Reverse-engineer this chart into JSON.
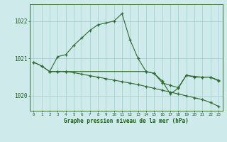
{
  "line1_x": [
    0,
    1,
    2,
    3,
    4,
    5,
    6,
    7,
    8,
    9,
    10,
    11,
    12,
    13,
    14,
    15,
    16,
    17,
    18,
    19,
    20,
    21,
    22,
    23
  ],
  "line1_y": [
    1020.9,
    1020.8,
    1020.65,
    1021.05,
    1021.1,
    1021.35,
    1021.55,
    1021.75,
    1021.9,
    1021.95,
    1022.0,
    1022.2,
    1021.5,
    1021.0,
    1020.65,
    1020.6,
    1020.4,
    1020.05,
    1020.2,
    1020.55,
    1020.5,
    1020.5,
    1020.5,
    1020.4
  ],
  "line2_x": [
    0,
    1,
    2,
    3,
    4,
    5,
    6,
    7,
    8,
    9,
    10,
    11,
    12,
    13,
    14,
    15,
    16,
    17,
    18,
    19,
    20,
    21,
    22,
    23
  ],
  "line2_y": [
    1020.9,
    1020.8,
    1020.65,
    1020.65,
    1020.65,
    1020.62,
    1020.58,
    1020.54,
    1020.5,
    1020.46,
    1020.42,
    1020.38,
    1020.34,
    1020.3,
    1020.25,
    1020.2,
    1020.15,
    1020.1,
    1020.05,
    1020.0,
    1019.95,
    1019.9,
    1019.82,
    1019.72
  ],
  "line3_x": [
    2,
    3,
    4,
    14,
    15,
    16,
    17,
    18,
    19,
    20,
    21,
    22,
    23
  ],
  "line3_y": [
    1020.65,
    1020.65,
    1020.65,
    1020.65,
    1020.6,
    1020.35,
    1020.28,
    1020.22,
    1020.55,
    1020.52,
    1020.5,
    1020.5,
    1020.42
  ],
  "yticks": [
    1020,
    1021,
    1022
  ],
  "xticks": [
    0,
    1,
    2,
    3,
    4,
    5,
    6,
    7,
    8,
    9,
    10,
    11,
    12,
    13,
    14,
    15,
    16,
    17,
    18,
    19,
    20,
    21,
    22,
    23
  ],
  "xlabel": "Graphe pression niveau de la mer (hPa)",
  "bg_color": "#ceeaea",
  "grid_color": "#9ecece",
  "line_color": "#2d6a2d",
  "text_color": "#1a5c1a",
  "ylim": [
    1019.6,
    1022.45
  ],
  "xlim": [
    -0.5,
    23.5
  ]
}
